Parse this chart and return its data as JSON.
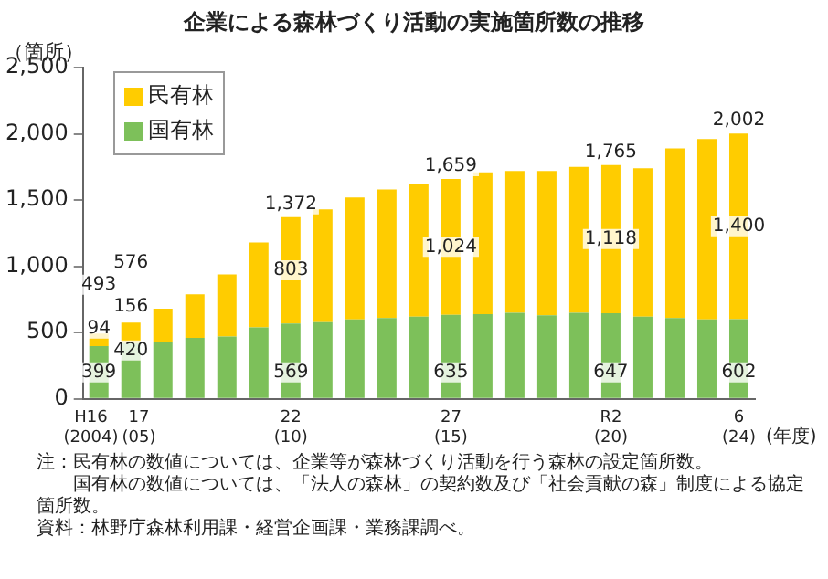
{
  "chart_data": {
    "type": "bar",
    "title": "企業による森林づくり活動の実施箇所数の推移",
    "ylabel": "（箇所）",
    "categories": [
      "H16\n(2004)",
      "17\n(05)",
      null,
      null,
      null,
      null,
      "22\n(10)",
      null,
      null,
      null,
      null,
      "27\n(15)",
      null,
      null,
      null,
      null,
      "R2\n(20)",
      null,
      null,
      null,
      "6\n(24)"
    ],
    "stacked": true,
    "series": [
      {
        "name": "国有林",
        "color": "#7dc05a",
        "values": [
          399,
          420,
          430,
          460,
          470,
          540,
          569,
          580,
          600,
          610,
          620,
          635,
          640,
          650,
          630,
          650,
          647,
          620,
          610,
          600,
          602
        ],
        "value_labels": [
          "399",
          "420",
          null,
          null,
          null,
          null,
          "569",
          null,
          null,
          null,
          null,
          "635",
          null,
          null,
          null,
          null,
          "647",
          null,
          null,
          null,
          "602"
        ]
      },
      {
        "name": "民有林",
        "color": "#ffcc00",
        "values": [
          94,
          156,
          250,
          330,
          470,
          640,
          803,
          850,
          920,
          970,
          1000,
          1024,
          1070,
          1070,
          1090,
          1100,
          1118,
          1120,
          1280,
          1360,
          1400
        ],
        "value_labels": [
          "94",
          "156",
          null,
          null,
          null,
          null,
          "803",
          null,
          null,
          null,
          null,
          "1,024",
          null,
          null,
          null,
          null,
          "1,118",
          null,
          null,
          null,
          "1,400"
        ]
      }
    ],
    "totals": [
      "493",
      "576",
      null,
      null,
      null,
      null,
      "1,372",
      null,
      null,
      null,
      null,
      "1,659",
      null,
      null,
      null,
      null,
      "1,765",
      null,
      null,
      null,
      "2,002"
    ],
    "ylim": [
      0,
      2500
    ],
    "yticks": [
      0,
      {
        "value": 500,
        "label": "500"
      },
      {
        "value": 1000,
        "label": "1,000"
      },
      {
        "value": 1500,
        "label": "1,500"
      },
      {
        "value": 2000,
        "label": "2,000"
      },
      {
        "value": 2500,
        "label": "2,500"
      }
    ],
    "grid": false,
    "legend": "top left",
    "annotations": [
      "(年度)",
      "注：民有林の数値については、企業等が森林づくり活動を行う森林の設定箇所数。",
      "　　国有林の数値については、「法人の森林」の契約数及び「社会貢献の森」制度による協定箇所数。",
      "資料：林野庁森林利用課・経営企画課・業務課調べ。"
    ]
  }
}
